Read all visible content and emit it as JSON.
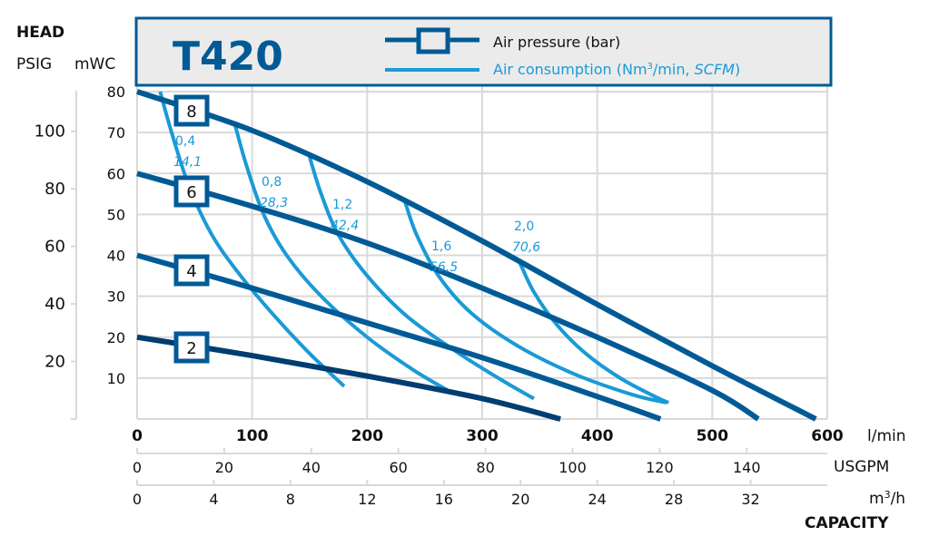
{
  "header": {
    "head_label": "HEAD",
    "psig_label": "PSIG",
    "mwc_label": "mWC",
    "title": "T420"
  },
  "legend": {
    "pressure_label": "Air pressure (bar)",
    "consumption_label_prefix": "Air consumption (Nm",
    "consumption_label_sup": "3",
    "consumption_label_mid": "/min, ",
    "consumption_label_italic": "SCFM",
    "consumption_label_suffix": ")"
  },
  "colors": {
    "pressure": "#005a96",
    "pressure_dark": "#003d70",
    "consumption": "#1a9ad6",
    "grid": "#d9d9d9",
    "box_fill": "#ebebeb"
  },
  "chart_data": {
    "type": "line",
    "title": "T420",
    "xlabel": "CAPACITY",
    "ylabel": "HEAD",
    "xlim": [
      0,
      600
    ],
    "ylim": [
      0,
      80
    ],
    "grid": true,
    "legend_position": "top",
    "x_axes": [
      {
        "unit": "l/min",
        "ticks": [
          "0",
          "100",
          "200",
          "300",
          "400",
          "500",
          "600"
        ],
        "values": [
          0,
          100,
          200,
          300,
          400,
          500,
          600
        ]
      },
      {
        "unit": "USGPM",
        "ticks": [
          "0",
          "20",
          "40",
          "60",
          "80",
          "100",
          "120",
          "140"
        ],
        "values": [
          0,
          20,
          40,
          60,
          80,
          100,
          120,
          140
        ]
      },
      {
        "unit_prefix": "m",
        "unit_sup": "3",
        "unit_suffix": "/h",
        "ticks": [
          "0",
          "4",
          "8",
          "12",
          "16",
          "20",
          "24",
          "28",
          "32"
        ],
        "values": [
          0,
          4,
          8,
          12,
          16,
          20,
          24,
          28,
          32
        ]
      }
    ],
    "y_axes": [
      {
        "unit": "mWC",
        "ticks": [
          "80",
          "70",
          "60",
          "50",
          "40",
          "30",
          "20",
          "10"
        ],
        "values": [
          80,
          70,
          60,
          50,
          40,
          30,
          20,
          10
        ]
      },
      {
        "unit": "PSIG",
        "ticks": [
          "100",
          "80",
          "60",
          "40",
          "20"
        ],
        "values": [
          100,
          80,
          60,
          40,
          20
        ]
      }
    ],
    "pressure_series": [
      {
        "name": "8",
        "x": [
          0,
          100,
          200,
          300,
          400,
          500,
          590
        ],
        "y": [
          80,
          70.5,
          58,
          43.5,
          28,
          13,
          0
        ]
      },
      {
        "name": "6",
        "x": [
          0,
          100,
          200,
          300,
          400,
          500,
          540
        ],
        "y": [
          60,
          52,
          43,
          32,
          20,
          7,
          0
        ]
      },
      {
        "name": "4",
        "x": [
          0,
          100,
          200,
          300,
          400,
          455
        ],
        "y": [
          40,
          32,
          23.5,
          15,
          5.5,
          0
        ]
      },
      {
        "name": "2",
        "x": [
          0,
          100,
          200,
          300,
          368
        ],
        "y": [
          20,
          15.5,
          10.5,
          5,
          0
        ]
      }
    ],
    "consumption_series": [
      {
        "name": "0,4",
        "scfm": "14,1",
        "x": [
          20,
          30,
          45,
          65,
          90,
          120,
          150,
          180
        ],
        "y": [
          80,
          70,
          57,
          45,
          35,
          25,
          16,
          8
        ]
      },
      {
        "name": "0,8",
        "scfm": "28,3",
        "x": [
          85,
          95,
          110,
          130,
          160,
          200,
          240,
          270
        ],
        "y": [
          72,
          62,
          50,
          40,
          30,
          20,
          12,
          7
        ]
      },
      {
        "name": "1,2",
        "scfm": "42,4",
        "x": [
          150,
          160,
          175,
          200,
          235,
          280,
          320,
          345
        ],
        "y": [
          64,
          55,
          45,
          35,
          25,
          16,
          9,
          5
        ]
      },
      {
        "name": "1,6",
        "scfm": "56,5",
        "x": [
          233,
          243,
          262,
          290,
          330,
          380,
          430,
          460
        ],
        "y": [
          53,
          45,
          35,
          26,
          18,
          11,
          6,
          4
        ]
      },
      {
        "name": "2,0",
        "scfm": "70,6",
        "x": [
          333,
          345,
          365,
          390,
          420,
          450,
          462
        ],
        "y": [
          38,
          31,
          23,
          16,
          10,
          5.5,
          4
        ]
      }
    ]
  }
}
